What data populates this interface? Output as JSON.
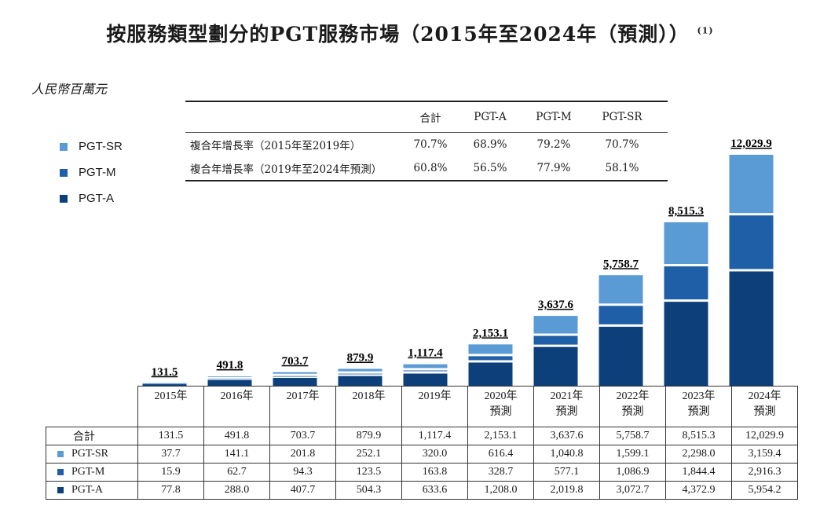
{
  "title": "按服務類型劃分的PGT服務市場（2015年至2024年（預測））",
  "title_note": "(1)",
  "unit": "人民幣百萬元",
  "legend": [
    {
      "label": "PGT-SR",
      "color": "#5b9bd5"
    },
    {
      "label": "PGT-M",
      "color": "#1f5fa8"
    },
    {
      "label": "PGT-A",
      "color": "#0d3f7a"
    }
  ],
  "cagr_table": {
    "headers": [
      "合計",
      "PGT-A",
      "PGT-M",
      "PGT-SR"
    ],
    "rows": [
      {
        "label": "複合年增長率（2015年至2019年）",
        "values": [
          "70.7%",
          "68.9%",
          "79.2%",
          "70.7%"
        ]
      },
      {
        "label": "複合年增長率（2019年至2024年預測）",
        "values": [
          "60.8%",
          "56.5%",
          "77.9%",
          "58.1%"
        ]
      }
    ]
  },
  "table": {
    "year_line1": [
      "2015年",
      "2016年",
      "2017年",
      "2018年",
      "2019年",
      "2020年",
      "2021年",
      "2022年",
      "2023年",
      "2024年"
    ],
    "year_line2": [
      "",
      "",
      "",
      "",
      "",
      "預測",
      "預測",
      "預測",
      "預測",
      "預測"
    ],
    "total_label": "合計",
    "totals": [
      "131.5",
      "491.8",
      "703.7",
      "879.9",
      "1,117.4",
      "2,153.1",
      "3,637.6",
      "5,758.7",
      "8,515.3",
      "12,029.9"
    ],
    "rows": [
      {
        "label": "PGT-SR",
        "values": [
          "37.7",
          "141.1",
          "201.8",
          "252.1",
          "320.0",
          "616.4",
          "1,040.8",
          "1,599.1",
          "2,298.0",
          "3,159.4"
        ]
      },
      {
        "label": "PGT-M",
        "values": [
          "15.9",
          "62.7",
          "94.3",
          "123.5",
          "163.8",
          "328.7",
          "577.1",
          "1,086.9",
          "1,844.4",
          "2,916.3"
        ]
      },
      {
        "label": "PGT-A",
        "values": [
          "77.8",
          "288.0",
          "407.7",
          "504.3",
          "633.6",
          "1,208.0",
          "2,019.8",
          "3,072.7",
          "4,372.9",
          "5,954.2"
        ]
      }
    ]
  },
  "chart_data": {
    "type": "bar",
    "stacked": true,
    "categories": [
      "2015年",
      "2016年",
      "2017年",
      "2018年",
      "2019年",
      "2020年預測",
      "2021年預測",
      "2022年預測",
      "2023年預測",
      "2024年預測"
    ],
    "series": [
      {
        "name": "PGT-A",
        "color": "#0d3f7a",
        "values": [
          77.8,
          288.0,
          407.7,
          504.3,
          633.6,
          1208.0,
          2019.8,
          3072.7,
          4372.9,
          5954.2
        ]
      },
      {
        "name": "PGT-M",
        "color": "#1f5fa8",
        "values": [
          15.9,
          62.7,
          94.3,
          123.5,
          163.8,
          328.7,
          577.1,
          1086.9,
          1844.4,
          2916.3
        ]
      },
      {
        "name": "PGT-SR",
        "color": "#5b9bd5",
        "values": [
          37.7,
          141.1,
          201.8,
          252.1,
          320.0,
          616.4,
          1040.8,
          1599.1,
          2298.0,
          3159.4
        ]
      }
    ],
    "totals": [
      131.5,
      491.8,
      703.7,
      879.9,
      1117.4,
      2153.1,
      3637.6,
      5758.7,
      8515.3,
      12029.9
    ],
    "total_labels": [
      "131.5",
      "491.8",
      "703.7",
      "879.9",
      "1,117.4",
      "2,153.1",
      "3,637.6",
      "5,758.7",
      "8,515.3",
      "12,029.9"
    ],
    "ylabel": "人民幣百萬元",
    "ylim": [
      0,
      12029.9
    ],
    "grid": false,
    "legend_position": "left"
  }
}
